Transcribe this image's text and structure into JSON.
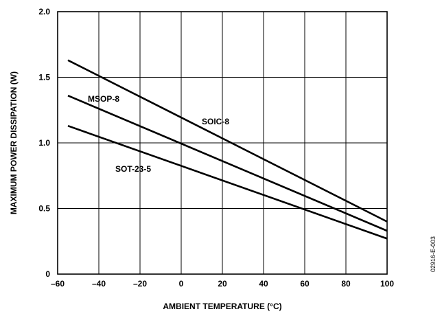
{
  "chart_data": {
    "type": "line",
    "title": "",
    "xlabel": "AMBIENT TEMPERATURE (°C)",
    "ylabel": "MAXIMUM POWER DISSIPATION (W)",
    "xlim": [
      -60,
      100
    ],
    "ylim": [
      0,
      2.0
    ],
    "x_ticks": [
      -60,
      -40,
      -20,
      0,
      20,
      40,
      60,
      80,
      100
    ],
    "x_tick_labels": [
      "–60",
      "–40",
      "–20",
      "0",
      "20",
      "40",
      "60",
      "80",
      "100"
    ],
    "y_ticks": [
      0,
      0.5,
      1.0,
      1.5,
      2.0
    ],
    "y_tick_labels": [
      "0",
      "0.5",
      "1.0",
      "1.5",
      "2.0"
    ],
    "grid": true,
    "legend": "inline labels",
    "series": [
      {
        "name": "SOIC-8",
        "x": [
          -55,
          100
        ],
        "y": [
          1.63,
          0.4
        ]
      },
      {
        "name": "MSOP-8",
        "x": [
          -55,
          100
        ],
        "y": [
          1.36,
          0.33
        ]
      },
      {
        "name": "SOT-23-5",
        "x": [
          -55,
          100
        ],
        "y": [
          1.13,
          0.27
        ]
      }
    ],
    "figure_id": "02916-E-003"
  }
}
